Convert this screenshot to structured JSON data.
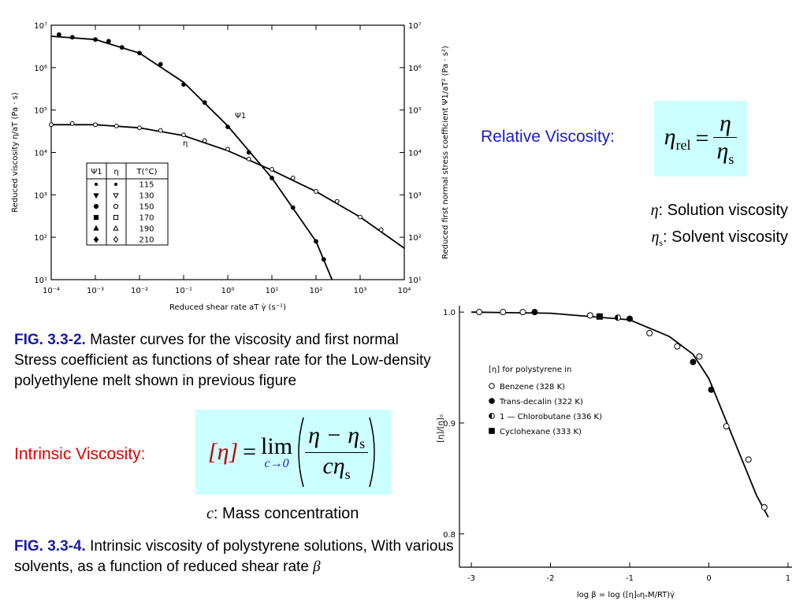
{
  "charts": [
    {
      "type": "scatter",
      "xscale": "log",
      "yscale": "log",
      "xlabel": "Reduced shear rate aT γ̇ (s⁻¹)",
      "ylabel": "Reduced viscosity η/aT (Pa · s)",
      "y2label": "Reduced first normal stress coefficient Ψ1/aT² (Pa · s²)",
      "xlim": [
        0.0001,
        10000
      ],
      "ylim": [
        10,
        10000000
      ],
      "y2lim": [
        10,
        10000000
      ],
      "xticks": [
        {
          "value": 0.0001,
          "label": "10⁻⁴"
        },
        {
          "value": 0.001,
          "label": "10⁻³"
        },
        {
          "value": 0.01,
          "label": "10⁻²"
        },
        {
          "value": 0.1,
          "label": "10⁻¹"
        },
        {
          "value": 1,
          "label": "10⁰"
        },
        {
          "value": 10,
          "label": "10¹"
        },
        {
          "value": 100,
          "label": "10²"
        },
        {
          "value": 1000,
          "label": "10³"
        },
        {
          "value": 10000,
          "label": "10⁴"
        }
      ],
      "yticks": [
        {
          "value": 10,
          "label": "10¹"
        },
        {
          "value": 100,
          "label": "10²"
        },
        {
          "value": 1000,
          "label": "10³"
        },
        {
          "value": 10000,
          "label": "10⁴"
        },
        {
          "value": 100000,
          "label": "10⁵"
        },
        {
          "value": 1000000,
          "label": "10⁶"
        },
        {
          "value": 10000000,
          "label": "10⁷"
        }
      ],
      "y2ticks": [
        {
          "value": 10,
          "label": "10¹"
        },
        {
          "value": 100,
          "label": "10²"
        },
        {
          "value": 1000,
          "label": "10³"
        },
        {
          "value": 10000,
          "label": "10⁴"
        },
        {
          "value": 100000,
          "label": "10⁵"
        },
        {
          "value": 1000000,
          "label": "10⁶"
        },
        {
          "value": 10000000,
          "label": "10⁷"
        }
      ],
      "series": [
        {
          "name": "Ψ1",
          "color": "#000000",
          "line": true,
          "x": [
            0.0001,
            0.001,
            0.01,
            0.1,
            1,
            10,
            100,
            230
          ],
          "values": [
            5500000,
            4600000,
            2200000,
            450000,
            42000,
            2500,
            80,
            10
          ]
        },
        {
          "name": "η",
          "color": "#000000",
          "line": true,
          "x": [
            0.0001,
            0.001,
            0.01,
            0.1,
            1,
            10,
            100,
            1000,
            10000
          ],
          "values": [
            45000,
            45000,
            38000,
            25000,
            11000,
            3800,
            1200,
            300,
            55
          ]
        },
        {
          "color": "#000000",
          "marker": "circle",
          "x": [
            0.00015,
            0.0003,
            0.001,
            0.002,
            0.004,
            0.01,
            0.03,
            0.1,
            0.3,
            1,
            3,
            10,
            30,
            100,
            150
          ],
          "values": [
            6000000,
            5200000,
            4600000,
            4200000,
            3000000,
            2200000,
            1200000,
            400000,
            150000,
            40000,
            10000,
            2500,
            500,
            80,
            30
          ]
        },
        {
          "color": "#000000",
          "marker": "circle-open",
          "x": [
            0.0001,
            0.0003,
            0.001,
            0.003,
            0.01,
            0.03,
            0.1,
            0.3,
            1,
            3,
            10,
            30,
            100,
            300,
            1000,
            3000
          ],
          "values": [
            45000,
            48000,
            45000,
            42000,
            38000,
            33000,
            26000,
            19000,
            12000,
            7000,
            4000,
            2500,
            1200,
            700,
            300,
            150
          ]
        }
      ],
      "legend_table": {
        "headers": [
          "Ψ1",
          "η",
          "T(°C)"
        ],
        "temperatures": [
          115,
          130,
          150,
          170,
          190,
          210
        ],
        "psi1_markers": [
          "dot",
          "triangle-down",
          "circle",
          "square",
          "triangle-up",
          "diamond"
        ],
        "eta_markers": [
          "dot",
          "triangle-down-open",
          "circle-open",
          "square-open",
          "triangle-up-open",
          "diamond-open"
        ]
      }
    },
    {
      "type": "scatter",
      "xscale": "linear",
      "yscale": "linear",
      "xlabel": "log β = log ([η]₀ηₛM/RT)γ̇",
      "ylabel": "[η]/[η]₀",
      "xlim": [
        -3.15,
        1.05
      ],
      "ylim": [
        0.77,
        1.02
      ],
      "xticks": [
        -3,
        -2,
        -1,
        0,
        1
      ],
      "yticks": [
        {
          "value": 1,
          "label": "1.0"
        },
        0.9,
        0.8
      ],
      "legend_title": "[η]  for polystyrene in",
      "series": [
        {
          "color": "#000000",
          "line": true,
          "x": [
            -3,
            -2,
            -1,
            -0.5,
            -0.2,
            0,
            0.2,
            0.4,
            0.6,
            0.75
          ],
          "values": [
            1,
            0.999,
            0.993,
            0.978,
            0.962,
            0.94,
            0.905,
            0.87,
            0.835,
            0.815
          ]
        },
        {
          "name": "Benzene (328 K)",
          "color": "#000000",
          "marker": "circle-open",
          "x": [
            -2.9,
            -2.6,
            -2.35,
            -1.5,
            -0.75,
            -0.4,
            -0.12,
            0.22,
            0.5,
            0.7
          ],
          "values": [
            1,
            1,
            1,
            0.997,
            0.981,
            0.969,
            0.96,
            0.897,
            0.867,
            0.824
          ]
        },
        {
          "name": "Trans-decalin (322 K)",
          "color": "#000000",
          "marker": "circle",
          "x": [
            -2.2,
            -1,
            -0.2,
            0.03
          ],
          "values": [
            1,
            0.994,
            0.955,
            0.93
          ]
        },
        {
          "name": "1 — Chlorobutane (336 K)",
          "color": "#000000",
          "marker": "half-circle",
          "x": [
            -1.15
          ],
          "values": [
            0.995
          ]
        },
        {
          "name": "Cyclohexane (333 K)",
          "color": "#000000",
          "marker": "square",
          "x": [
            -1.38
          ],
          "values": [
            0.996
          ]
        }
      ]
    }
  ],
  "caption1": {
    "label": "FIG. 3.3-2.",
    "text": "Master curves for the viscosity and first normal Stress coefficient as functions of shear rate for the Low-density polyethylene melt shown in previous figure"
  },
  "relative": {
    "label": "Relative Viscosity:",
    "lhs": "η",
    "lhs_sub": "rel",
    "eq": "=",
    "num": "η",
    "den": "η",
    "den_sub": "s"
  },
  "defs": [
    {
      "sym": "η",
      "text": ": Solution viscosity"
    },
    {
      "sym": "η",
      "sub": "s",
      "text": ": Solvent viscosity"
    }
  ],
  "intrinsic": {
    "label": "Intrinsic Viscosity:",
    "lhs": "[η]",
    "eq": "=",
    "op": "lim",
    "op_sub": "c→0",
    "num": "η − η",
    "num_sub": "s",
    "den": "cη",
    "den_sub": "s"
  },
  "mass": {
    "sym": "c",
    "text": ": Mass concentration"
  },
  "caption2": {
    "label": "FIG. 3.3-4.",
    "text": "Intrinsic viscosity of polystyrene solutions, With various solvents, as a function of reduced shear rate",
    "sym": "β"
  }
}
